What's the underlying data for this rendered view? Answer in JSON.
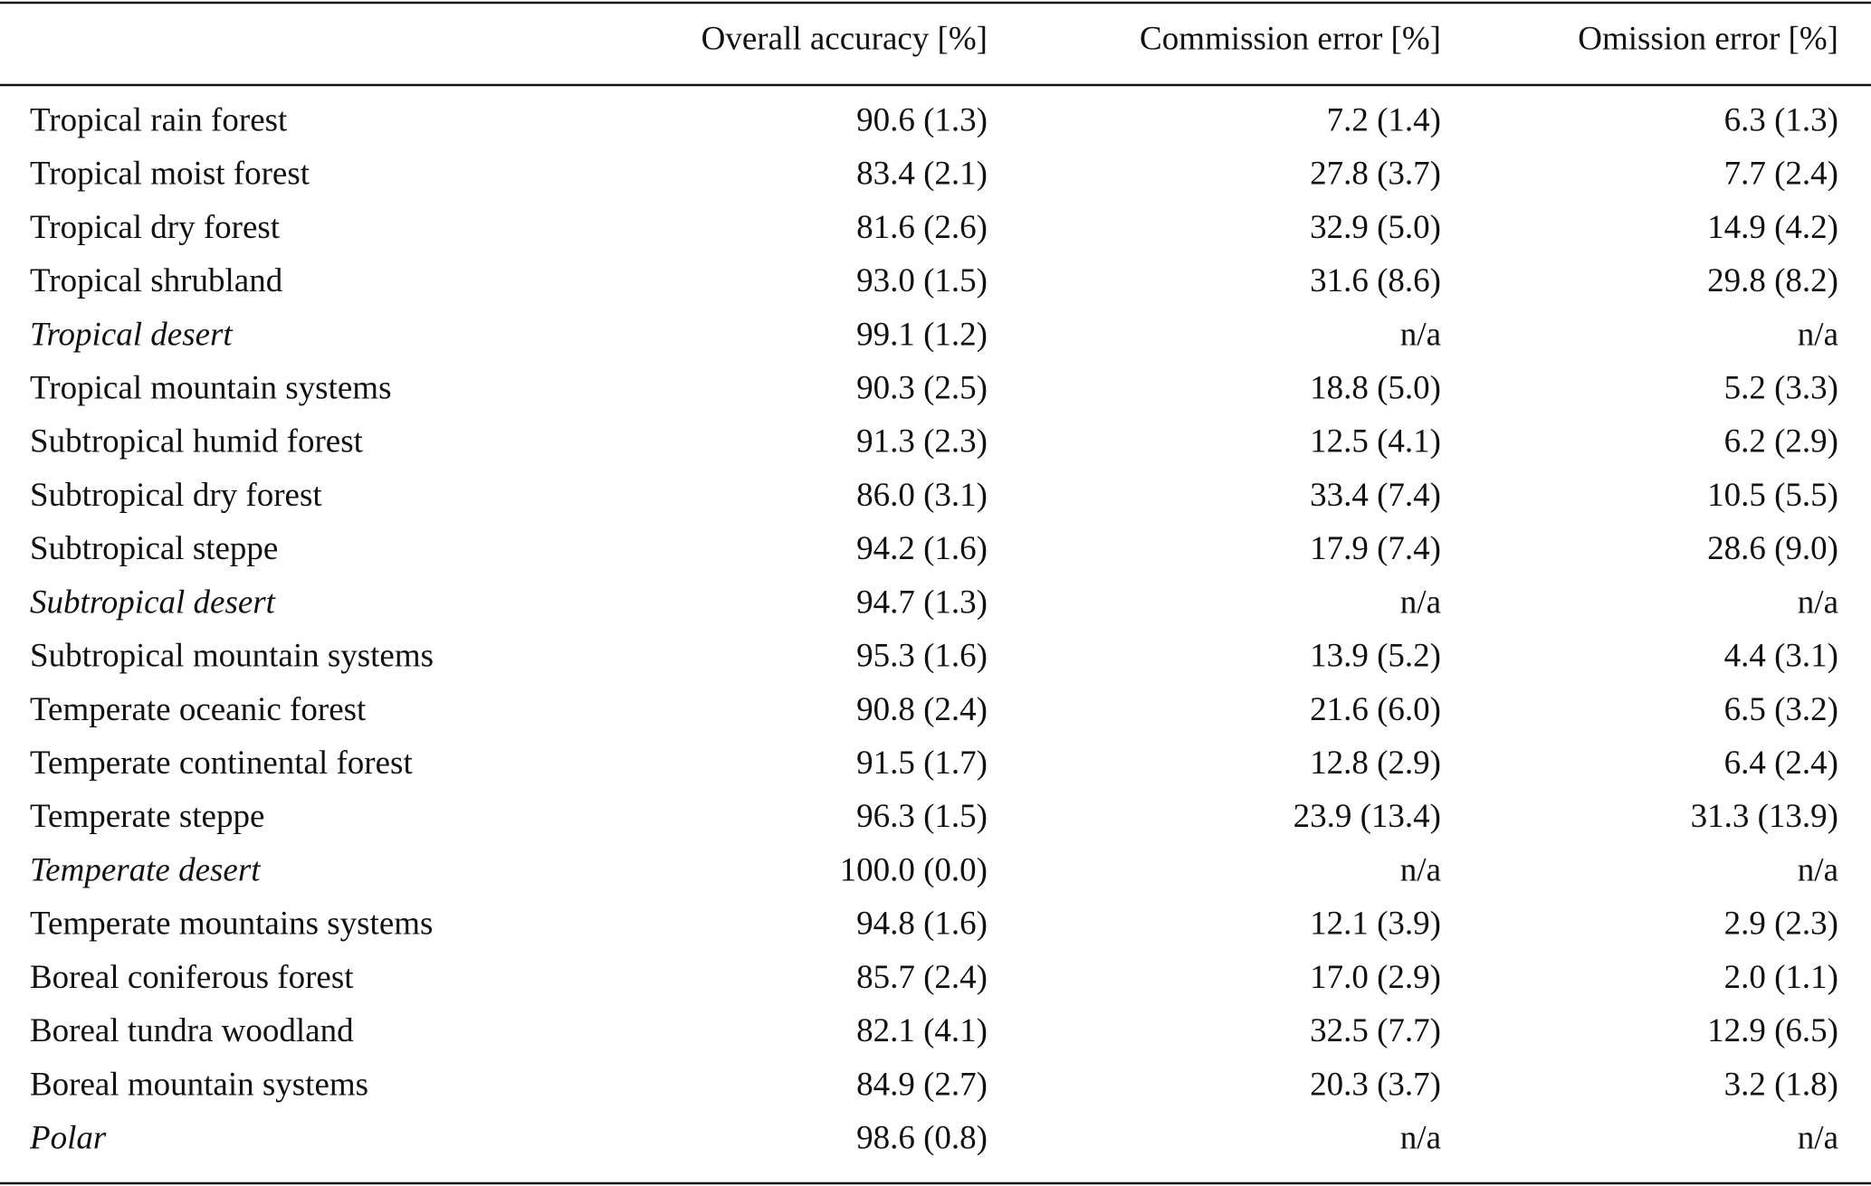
{
  "table": {
    "header": [
      "Overall accuracy [%]",
      "Commission error [%]",
      "Omission error [%]"
    ],
    "rows": [
      [
        "Tropical rain forest",
        "90.6 (1.3)",
        "7.2 (1.4)",
        "6.3 (1.3)"
      ],
      [
        "Tropical moist forest",
        "83.4 (2.1)",
        "27.8 (3.7)",
        "7.7 (2.4)"
      ],
      [
        "Tropical dry forest",
        "81.6 (2.6)",
        "32.9 (5.0)",
        "14.9 (4.2)"
      ],
      [
        "Tropical shrubland",
        "93.0 (1.5)",
        "31.6 (8.6)",
        "29.8 (8.2)"
      ],
      [
        "Tropical desert",
        "99.1 (1.2)",
        "n/a",
        "n/a"
      ],
      [
        "Tropical mountain systems",
        "90.3 (2.5)",
        "18.8 (5.0)",
        "5.2 (3.3)"
      ],
      [
        "Subtropical humid forest",
        "91.3 (2.3)",
        "12.5 (4.1)",
        "6.2 (2.9)"
      ],
      [
        "Subtropical dry forest",
        "86.0 (3.1)",
        "33.4 (7.4)",
        "10.5 (5.5)"
      ],
      [
        "Subtropical steppe",
        "94.2 (1.6)",
        "17.9 (7.4)",
        "28.6 (9.0)"
      ],
      [
        "Subtropical desert",
        "94.7 (1.3)",
        "n/a",
        "n/a"
      ],
      [
        "Subtropical mountain systems",
        "95.3 (1.6)",
        "13.9 (5.2)",
        "4.4 (3.1)"
      ],
      [
        "Temperate oceanic forest",
        "90.8 (2.4)",
        "21.6 (6.0)",
        "6.5 (3.2)"
      ],
      [
        "Temperate continental forest",
        "91.5 (1.7)",
        "12.8 (2.9)",
        "6.4 (2.4)"
      ],
      [
        "Temperate steppe",
        "96.3 (1.5)",
        "23.9 (13.4)",
        "31.3 (13.9)"
      ],
      [
        "Temperate desert",
        "100.0 (0.0)",
        "n/a",
        "n/a"
      ],
      [
        "Temperate mountains systems",
        "94.8 (1.6)",
        "12.1 (3.9)",
        "2.9 (2.3)"
      ],
      [
        "Boreal coniferous forest",
        "85.7 (2.4)",
        "17.0 (2.9)",
        "2.0 (1.1)"
      ],
      [
        "Boreal tundra woodland",
        "82.1 (4.1)",
        "32.5 (7.7)",
        "12.9 (6.5)"
      ],
      [
        "Boreal mountain systems",
        "84.9 (2.7)",
        "20.3 (3.7)",
        "3.2 (1.8)"
      ],
      [
        "Polar",
        "98.6 (0.8)",
        "n/a",
        "n/a"
      ]
    ]
  }
}
